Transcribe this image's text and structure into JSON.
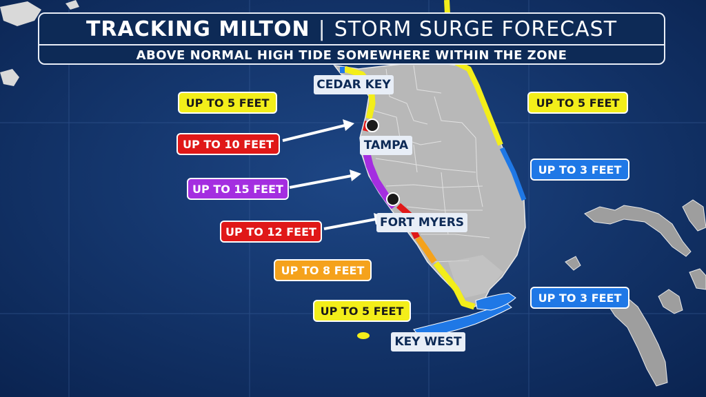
{
  "header": {
    "title_bold": "TRACKING MILTON",
    "separator": "|",
    "title_rest": "STORM SURGE FORECAST",
    "subtitle": "ABOVE NORMAL HIGH TIDE SOMEWHERE WITHIN THE ZONE"
  },
  "cities": {
    "cedar_key": "CEDAR KEY",
    "tampa": "TAMPA",
    "fort_myers": "FORT MYERS",
    "key_west": "KEY WEST"
  },
  "surge_labels": {
    "nw_gulf": "UP TO 5 FEET",
    "tampa": "UP TO 10 FEET",
    "sarasota": "UP TO 15 FEET",
    "fort_myers": "UP TO 12 FEET",
    "naples": "UP TO 8 FEET",
    "south_gulf": "UP TO 5 FEET",
    "atlantic_north": "UP TO 5 FEET",
    "atlantic_mid": "UP TO 3 FEET",
    "keys": "UP TO 3 FEET"
  },
  "colors": {
    "water": "#0f2d5c",
    "land": "#b8b8b8",
    "surge_3ft": "#1f78e6",
    "surge_5ft": "#f3ee1a",
    "surge_8ft": "#f5a21c",
    "surge_10_12ft": "#e01818",
    "surge_15ft": "#a42ee0"
  }
}
